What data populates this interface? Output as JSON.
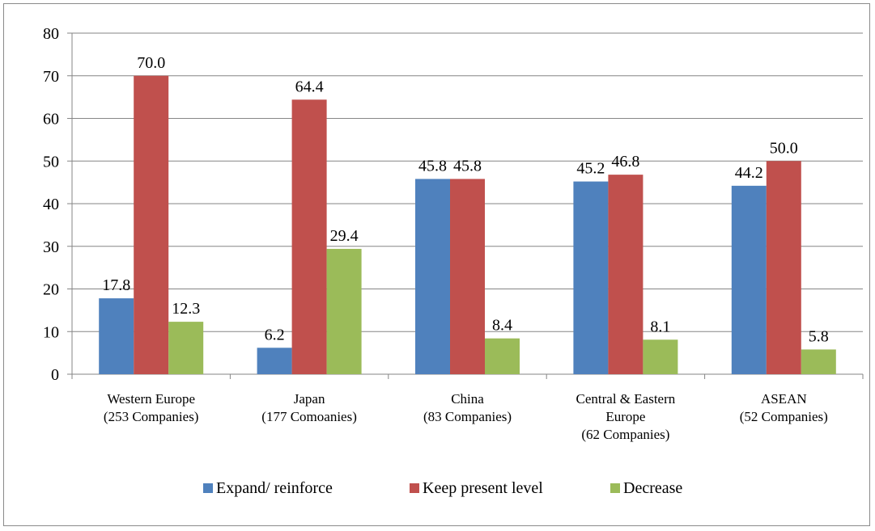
{
  "chart_data": {
    "type": "bar",
    "categories": [
      [
        "Western Europe",
        "(253 Companies)"
      ],
      [
        "Japan",
        "(177 Comoanies)"
      ],
      [
        "China",
        "(83 Companies)"
      ],
      [
        "Central & Eastern",
        "Europe",
        "(62 Companies)"
      ],
      [
        "ASEAN",
        "(52 Companies)"
      ]
    ],
    "series": [
      {
        "name": "Expand/ reinforce",
        "color": "#4f81bd",
        "values": [
          17.8,
          6.2,
          45.8,
          45.2,
          44.2
        ],
        "labels": [
          "17.8",
          "6.2",
          "45.8",
          "45.2",
          "44.2"
        ]
      },
      {
        "name": "Keep present level",
        "color": "#c0504d",
        "values": [
          70.0,
          64.4,
          45.8,
          46.8,
          50.0
        ],
        "labels": [
          "70.0",
          "64.4",
          "45.8",
          "46.8",
          "50.0"
        ]
      },
      {
        "name": "Decrease",
        "color": "#9bbb59",
        "values": [
          12.3,
          29.4,
          8.4,
          8.1,
          5.8
        ],
        "labels": [
          "12.3",
          "29.4",
          "8.4",
          "8.1",
          "5.8"
        ]
      }
    ],
    "ylim": [
      0,
      80
    ],
    "yticks": [
      0,
      10,
      20,
      30,
      40,
      50,
      60,
      70,
      80
    ],
    "grid": true,
    "legend_position": "bottom",
    "title": "",
    "xlabel": "",
    "ylabel": ""
  }
}
